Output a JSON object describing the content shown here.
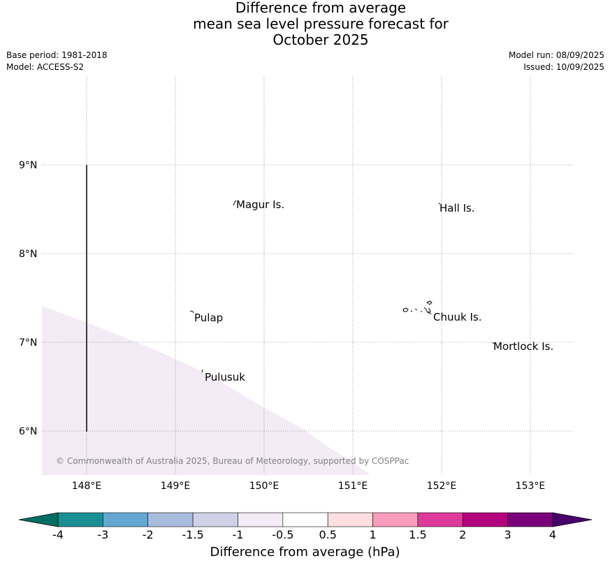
{
  "title": {
    "line1": "Difference from average",
    "line2": "mean sea level pressure forecast for",
    "line3": "October 2025"
  },
  "meta": {
    "base_period": "Base period: 1981-2018",
    "model": "Model: ACCESS-S2",
    "model_run": "Model run: 08/09/2025",
    "issued": "Issued: 10/09/2025"
  },
  "map": {
    "lon_ticks": [
      "148°E",
      "149°E",
      "150°E",
      "151°E",
      "152°E",
      "153°E"
    ],
    "lat_ticks": [
      "9°N",
      "8°N",
      "7°N",
      "6°N"
    ],
    "places": [
      {
        "name": "Magur Is."
      },
      {
        "name": "Hall Is."
      },
      {
        "name": "Pulap"
      },
      {
        "name": "Chuuk Is."
      },
      {
        "name": "Mortlock Is."
      },
      {
        "name": "Pulusuk"
      }
    ],
    "shaded_category": "-1 to -0.5",
    "shaded_color": "#f3ebf5",
    "copyright": "© Commonwealth of Australia 2025, Bureau of Meteorology, supported by COSPPac"
  },
  "colorbar": {
    "title": "Difference from average (hPa)",
    "ticks": [
      "-4",
      "-3",
      "-2",
      "-1.5",
      "-1",
      "-0.5",
      "0.5",
      "1",
      "1.5",
      "2",
      "3",
      "4"
    ],
    "low_extend_color": "#006e62",
    "high_extend_color": "#48006a",
    "colors": [
      "#1a8f95",
      "#64a8d1",
      "#a8bcdc",
      "#d0d1e6",
      "#f3ebf5",
      "#ffffff",
      "#ffdde0",
      "#f89cbb",
      "#df3a9a",
      "#b3007c",
      "#790078"
    ]
  }
}
